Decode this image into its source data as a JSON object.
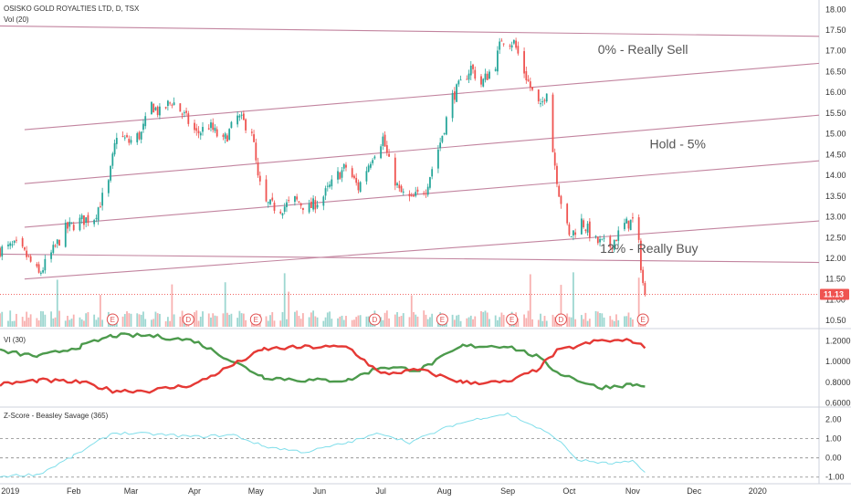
{
  "header": {
    "title": "OSISKO GOLD ROYALTIES LTD, D, TSX",
    "volume_label": "Vol (20)"
  },
  "colors": {
    "up": "#26a69a",
    "down": "#ef5350",
    "trend": "#c2849f",
    "vi_plus": "#4c9a4c",
    "vi_minus": "#e53935",
    "zscore": "#80deea",
    "price_tag": "#ef5350"
  },
  "chart_data": [
    {
      "type": "candlestick",
      "x_range": [
        "2018-12-27",
        "2020-01-31"
      ],
      "ylim": [
        10.35,
        18.05
      ],
      "y_ticks": [
        "10.50",
        "11.00",
        "11.50",
        "12.00",
        "12.50",
        "13.00",
        "13.50",
        "14.00",
        "14.50",
        "15.00",
        "15.50",
        "16.00",
        "16.50",
        "17.00",
        "17.50",
        "18.00"
      ],
      "x_ticks": [
        {
          "date": "2019-01-01",
          "label": "2019"
        },
        {
          "date": "2019-02-01",
          "label": "Feb"
        },
        {
          "date": "2019-03-01",
          "label": "Mar"
        },
        {
          "date": "2019-04-01",
          "label": "Apr"
        },
        {
          "date": "2019-05-01",
          "label": "May"
        },
        {
          "date": "2019-06-01",
          "label": "Jun"
        },
        {
          "date": "2019-07-01",
          "label": "Jul"
        },
        {
          "date": "2019-08-01",
          "label": "Aug"
        },
        {
          "date": "2019-09-01",
          "label": "Sep"
        },
        {
          "date": "2019-10-01",
          "label": "Oct"
        },
        {
          "date": "2019-11-01",
          "label": "Nov"
        },
        {
          "date": "2019-12-01",
          "label": "Dec"
        },
        {
          "date": "2020-01-01",
          "label": "2020"
        }
      ],
      "last_price": "11.13",
      "close_anchors": [
        [
          "2018-12-27",
          12.2
        ],
        [
          "2019-01-04",
          12.3
        ],
        [
          "2019-01-09",
          12.05
        ],
        [
          "2019-01-15",
          11.6
        ],
        [
          "2019-01-21",
          12.1
        ],
        [
          "2019-01-28",
          12.7
        ],
        [
          "2019-02-04",
          12.9
        ],
        [
          "2019-02-11",
          13.0
        ],
        [
          "2019-02-18",
          13.8
        ],
        [
          "2019-02-22",
          15.0
        ],
        [
          "2019-02-28",
          14.8
        ],
        [
          "2019-03-06",
          15.0
        ],
        [
          "2019-03-11",
          15.7
        ],
        [
          "2019-03-15",
          15.5
        ],
        [
          "2019-03-21",
          15.8
        ],
        [
          "2019-03-26",
          15.5
        ],
        [
          "2019-04-02",
          15.0
        ],
        [
          "2019-04-08",
          15.2
        ],
        [
          "2019-04-15",
          14.8
        ],
        [
          "2019-04-22",
          15.4
        ],
        [
          "2019-04-29",
          15.1
        ],
        [
          "2019-05-02",
          13.9
        ],
        [
          "2019-05-06",
          13.3
        ],
        [
          "2019-05-13",
          13.2
        ],
        [
          "2019-05-20",
          13.4
        ],
        [
          "2019-05-27",
          13.2
        ],
        [
          "2019-06-03",
          13.5
        ],
        [
          "2019-06-10",
          14.0
        ],
        [
          "2019-06-14",
          14.2
        ],
        [
          "2019-06-20",
          13.7
        ],
        [
          "2019-06-27",
          14.5
        ],
        [
          "2019-07-02",
          14.9
        ],
        [
          "2019-07-05",
          14.3
        ],
        [
          "2019-07-10",
          13.6
        ],
        [
          "2019-07-16",
          13.4
        ],
        [
          "2019-07-23",
          13.7
        ],
        [
          "2019-07-30",
          14.8
        ],
        [
          "2019-08-05",
          15.9
        ],
        [
          "2019-08-09",
          16.2
        ],
        [
          "2019-08-14",
          16.6
        ],
        [
          "2019-08-19",
          16.2
        ],
        [
          "2019-08-26",
          16.7
        ],
        [
          "2019-08-29",
          17.3
        ],
        [
          "2019-09-04",
          17.2
        ],
        [
          "2019-09-09",
          16.5
        ],
        [
          "2019-09-13",
          16.0
        ],
        [
          "2019-09-17",
          15.6
        ],
        [
          "2019-09-20",
          16.1
        ],
        [
          "2019-09-23",
          14.6
        ],
        [
          "2019-09-26",
          13.6
        ],
        [
          "2019-10-01",
          12.5
        ],
        [
          "2019-10-07",
          12.9
        ],
        [
          "2019-10-14",
          12.4
        ],
        [
          "2019-10-21",
          12.3
        ],
        [
          "2019-10-28",
          12.8
        ],
        [
          "2019-11-01",
          12.9
        ],
        [
          "2019-11-04",
          12.3
        ],
        [
          "2019-11-06",
          11.4
        ],
        [
          "2019-11-07",
          11.13
        ]
      ],
      "trend_lines": [
        {
          "from": [
            "2018-12-27",
            17.6
          ],
          "to": [
            "2020-01-31",
            17.35
          ]
        },
        {
          "from": [
            "2019-01-08",
            15.1
          ],
          "to": [
            "2020-01-31",
            16.7
          ]
        },
        {
          "from": [
            "2019-01-08",
            13.8
          ],
          "to": [
            "2020-01-31",
            15.45
          ]
        },
        {
          "from": [
            "2019-01-08",
            12.75
          ],
          "to": [
            "2020-01-31",
            14.35
          ]
        },
        {
          "from": [
            "2019-01-08",
            11.5
          ],
          "to": [
            "2020-01-31",
            12.9
          ]
        },
        {
          "from": [
            "2018-12-27",
            12.1
          ],
          "to": [
            "2020-01-31",
            11.9
          ]
        }
      ],
      "price_line": 11.13,
      "annotations": [
        {
          "text": "0% - Really Sell",
          "date": "2019-11-06",
          "y": 16.93
        },
        {
          "text": "Hold - 5%",
          "date": "2019-11-23",
          "y": 14.65
        },
        {
          "text": "12% - Really Buy",
          "date": "2019-11-09",
          "y": 12.13
        }
      ],
      "events": [
        {
          "date": "2019-02-20",
          "label": "E"
        },
        {
          "date": "2019-03-29",
          "label": "D"
        },
        {
          "date": "2019-05-01",
          "label": "E"
        },
        {
          "date": "2019-06-28",
          "label": "D"
        },
        {
          "date": "2019-07-31",
          "label": "E"
        },
        {
          "date": "2019-09-03",
          "label": "E"
        },
        {
          "date": "2019-09-27",
          "label": "D"
        },
        {
          "date": "2019-11-06",
          "label": "E"
        }
      ]
    },
    {
      "type": "line",
      "title": "VI (30)",
      "ylim": [
        0.58,
        1.3
      ],
      "y_ticks": [
        "1.2000",
        "1.0000",
        "0.8000",
        "0.6000"
      ],
      "series": [
        {
          "id": "vi_plus",
          "points": [
            [
              "2018-12-27",
              1.1
            ],
            [
              "2019-01-15",
              1.05
            ],
            [
              "2019-02-05",
              1.15
            ],
            [
              "2019-02-20",
              1.25
            ],
            [
              "2019-03-10",
              1.25
            ],
            [
              "2019-04-01",
              1.2
            ],
            [
              "2019-04-20",
              1.0
            ],
            [
              "2019-05-05",
              0.85
            ],
            [
              "2019-05-25",
              0.82
            ],
            [
              "2019-06-15",
              0.82
            ],
            [
              "2019-07-01",
              0.95
            ],
            [
              "2019-07-20",
              0.92
            ],
            [
              "2019-08-10",
              1.15
            ],
            [
              "2019-09-01",
              1.15
            ],
            [
              "2019-09-15",
              1.05
            ],
            [
              "2019-09-25",
              0.9
            ],
            [
              "2019-10-15",
              0.75
            ],
            [
              "2019-11-01",
              0.78
            ],
            [
              "2019-11-07",
              0.76
            ]
          ]
        },
        {
          "id": "vi_minus",
          "points": [
            [
              "2018-12-27",
              0.78
            ],
            [
              "2019-01-15",
              0.82
            ],
            [
              "2019-02-05",
              0.8
            ],
            [
              "2019-02-20",
              0.72
            ],
            [
              "2019-03-10",
              0.72
            ],
            [
              "2019-04-01",
              0.78
            ],
            [
              "2019-04-20",
              0.97
            ],
            [
              "2019-05-05",
              1.12
            ],
            [
              "2019-05-25",
              1.14
            ],
            [
              "2019-06-15",
              1.14
            ],
            [
              "2019-07-01",
              0.88
            ],
            [
              "2019-07-20",
              0.92
            ],
            [
              "2019-08-10",
              0.8
            ],
            [
              "2019-09-01",
              0.8
            ],
            [
              "2019-09-15",
              0.92
            ],
            [
              "2019-09-25",
              1.1
            ],
            [
              "2019-10-15",
              1.2
            ],
            [
              "2019-11-01",
              1.2
            ],
            [
              "2019-11-07",
              1.13
            ]
          ]
        }
      ]
    },
    {
      "type": "line",
      "title": "Z-Score - Beasley Savage (365)",
      "ylim": [
        -1.25,
        2.55
      ],
      "y_ticks": [
        "2.00",
        "1.00",
        "0.00",
        "-1.00"
      ],
      "reference_lines": [
        1.0,
        0.0,
        -1.0
      ],
      "series": [
        {
          "id": "zscore",
          "points": [
            [
              "2018-12-27",
              -0.95
            ],
            [
              "2019-01-15",
              -0.85
            ],
            [
              "2019-02-01",
              0.1
            ],
            [
              "2019-02-20",
              1.3
            ],
            [
              "2019-03-10",
              1.25
            ],
            [
              "2019-04-01",
              1.1
            ],
            [
              "2019-04-20",
              1.2
            ],
            [
              "2019-05-05",
              0.6
            ],
            [
              "2019-05-25",
              0.3
            ],
            [
              "2019-06-15",
              0.8
            ],
            [
              "2019-07-01",
              1.3
            ],
            [
              "2019-07-15",
              0.8
            ],
            [
              "2019-08-05",
              1.7
            ],
            [
              "2019-08-20",
              2.1
            ],
            [
              "2019-09-01",
              2.3
            ],
            [
              "2019-09-15",
              1.6
            ],
            [
              "2019-09-25",
              1.0
            ],
            [
              "2019-10-05",
              -0.1
            ],
            [
              "2019-10-20",
              -0.3
            ],
            [
              "2019-11-01",
              -0.2
            ],
            [
              "2019-11-07",
              -0.75
            ]
          ]
        }
      ]
    }
  ]
}
